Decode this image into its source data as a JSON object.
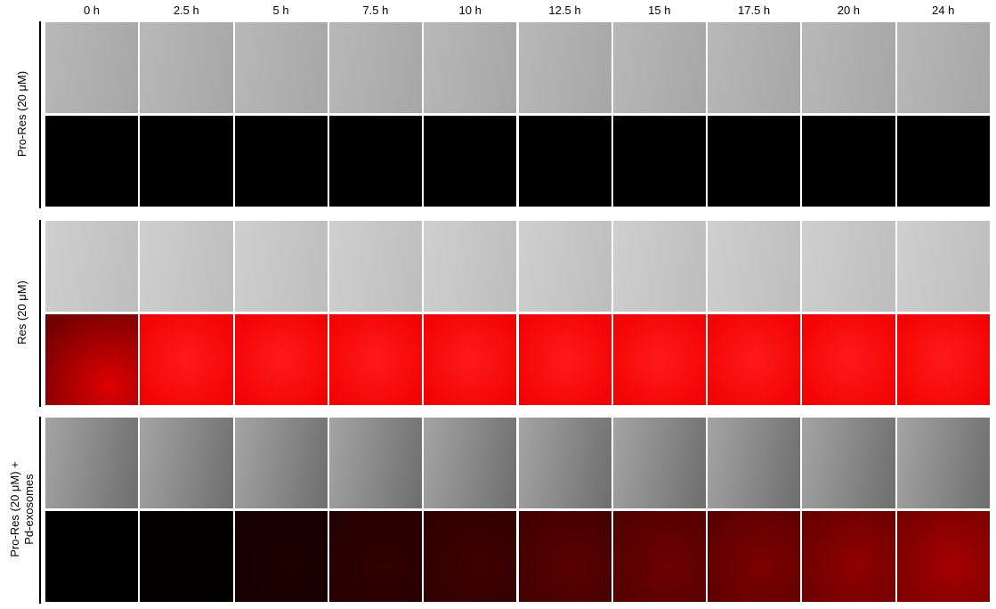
{
  "columns": [
    "0 h",
    "2.5 h",
    "5 h",
    "7.5 h",
    "10 h",
    "12.5 h",
    "15 h",
    "17.5 h",
    "20 h",
    "24 h"
  ],
  "rows": [
    {
      "label_lines": [
        "Pro-Res (20 μM)"
      ]
    },
    {
      "label_lines": [
        "Res (20 μM)"
      ]
    },
    {
      "label_lines": [
        "Pro-Res (20 μM) +",
        "Pd-exosomes"
      ]
    }
  ]
}
